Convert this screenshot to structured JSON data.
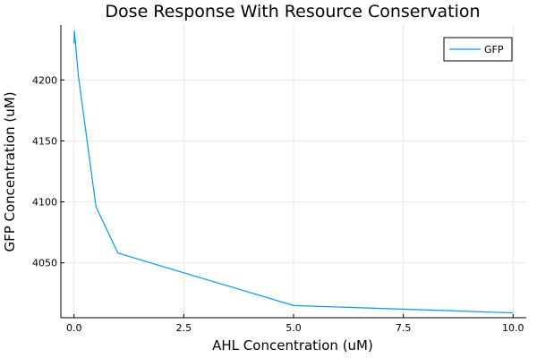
{
  "chart_data": {
    "type": "line",
    "title": "Dose Response With Resource Conservation",
    "xlabel": "AHL Concentration (uM)",
    "ylabel": "GFP Concentration (uM)",
    "xlim": [
      -0.3,
      10.3
    ],
    "ylim": [
      4005,
      4245
    ],
    "xticks": [
      0.0,
      2.5,
      5.0,
      7.5,
      10.0
    ],
    "xtick_labels": [
      "0.0",
      "2.5",
      "5.0",
      "7.5",
      "10.0"
    ],
    "yticks": [
      4050,
      4100,
      4150,
      4200
    ],
    "ytick_labels": [
      "4050",
      "4100",
      "4150",
      "4200"
    ],
    "grid": true,
    "legend_position": "top-right",
    "series": [
      {
        "name": "GFP",
        "color": "#009AFA",
        "x": [
          0.0,
          0.01,
          0.05,
          0.1,
          0.5,
          1.0,
          5.0,
          10.0
        ],
        "y": [
          4230,
          4240,
          4223,
          4203,
          4096,
          4058,
          4015,
          4009
        ]
      }
    ]
  }
}
